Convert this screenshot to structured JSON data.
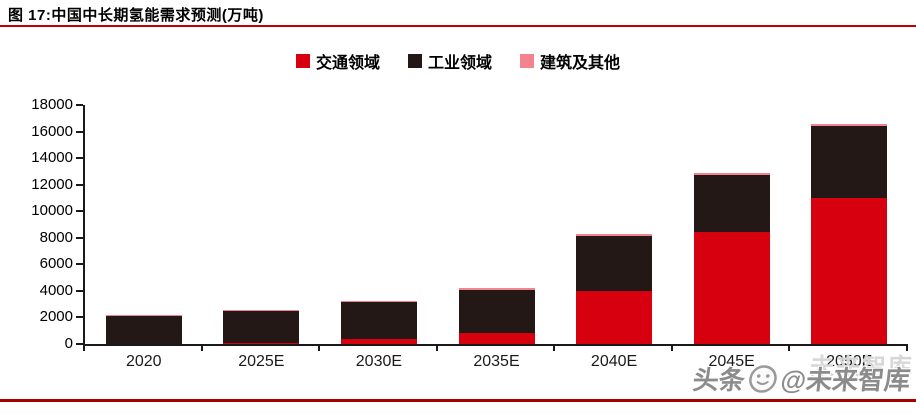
{
  "figure": {
    "title": "图 17:中国中长期氢能需求预测(万吨)"
  },
  "chart_data": {
    "type": "bar",
    "stacked": true,
    "title": "中国中长期氢能需求预测(万吨)",
    "unit": "万吨",
    "categories": [
      "2020",
      "2025E",
      "2030E",
      "2035E",
      "2040E",
      "2045E",
      "2050E"
    ],
    "series": [
      {
        "name": "交通领域",
        "color": "#d7000f",
        "values": [
          0,
          100,
          400,
          800,
          4000,
          8400,
          11000
        ]
      },
      {
        "name": "工业领域",
        "color": "#231815",
        "values": [
          2100,
          2400,
          2800,
          3300,
          4150,
          4300,
          5400
        ]
      },
      {
        "name": "建筑及其他",
        "color": "#f2838f",
        "values": [
          60,
          60,
          60,
          80,
          100,
          150,
          200
        ]
      }
    ],
    "totals": [
      2160,
      2560,
      3260,
      4180,
      8250,
      12850,
      16600
    ],
    "ylim": [
      0,
      18000
    ],
    "ytick_step": 2000,
    "ytick_labels": [
      "0",
      "2000",
      "4000",
      "6000",
      "8000",
      "10000",
      "12000",
      "14000",
      "16000",
      "18000"
    ],
    "grid": false,
    "legend_position": "top-center"
  },
  "watermark": {
    "ghost": "未来智库",
    "brand": "头条",
    "handle": "@未来智库"
  },
  "colors": {
    "title_rule": "#c00000",
    "bottom_rule": "#a80000",
    "axis": "#1a1a1a"
  }
}
